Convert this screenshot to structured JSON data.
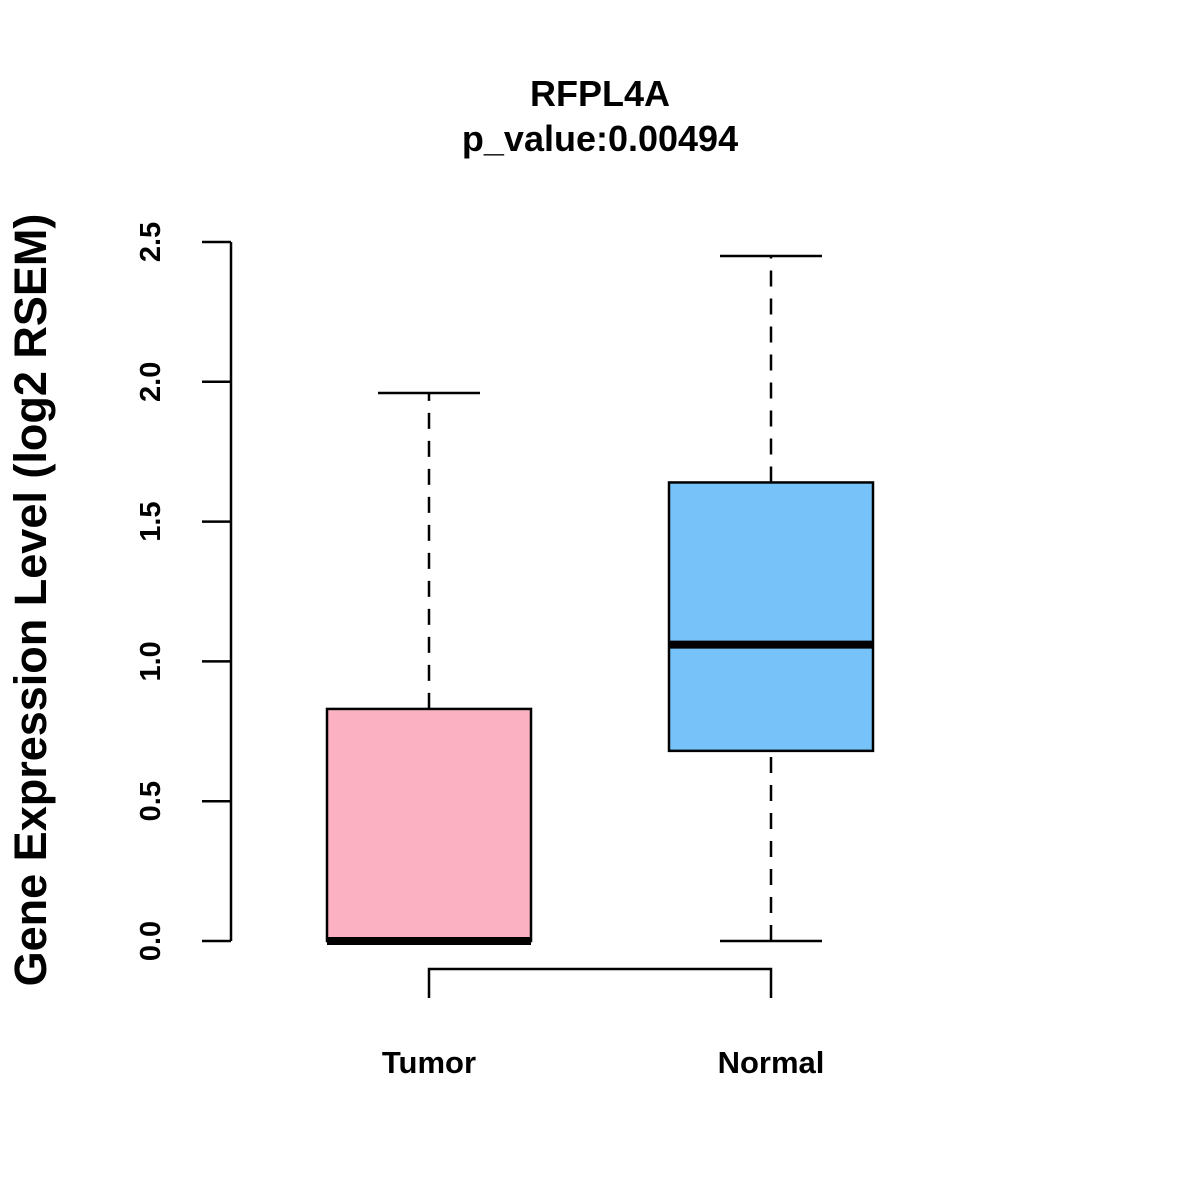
{
  "chart_data": {
    "type": "boxplot",
    "title": "RFPL4A",
    "subtitle": "p_value:0.00494",
    "xlabel": "",
    "ylabel": "Gene Expression Level (log2 RSEM)",
    "ylim": [
      0,
      2.5
    ],
    "yticks": [
      0,
      0.5,
      1,
      1.5,
      2,
      2.5
    ],
    "ytick_labels": [
      "0.0",
      "0.5",
      "1.0",
      "1.5",
      "2.0",
      "2.5"
    ],
    "grid": false,
    "categories": [
      "Tumor",
      "Normal"
    ],
    "boxes": [
      {
        "name": "Tumor",
        "min": 0.0,
        "q1": 0.0,
        "median": 0.0,
        "q3": 0.83,
        "max": 1.96,
        "color": "#FBB1C2"
      },
      {
        "name": "Normal",
        "min": 0.0,
        "q1": 0.68,
        "median": 1.06,
        "q3": 1.64,
        "max": 2.45,
        "color": "#77C2F8"
      }
    ],
    "significance_bracket": {
      "from": "Tumor",
      "to": "Normal"
    }
  }
}
